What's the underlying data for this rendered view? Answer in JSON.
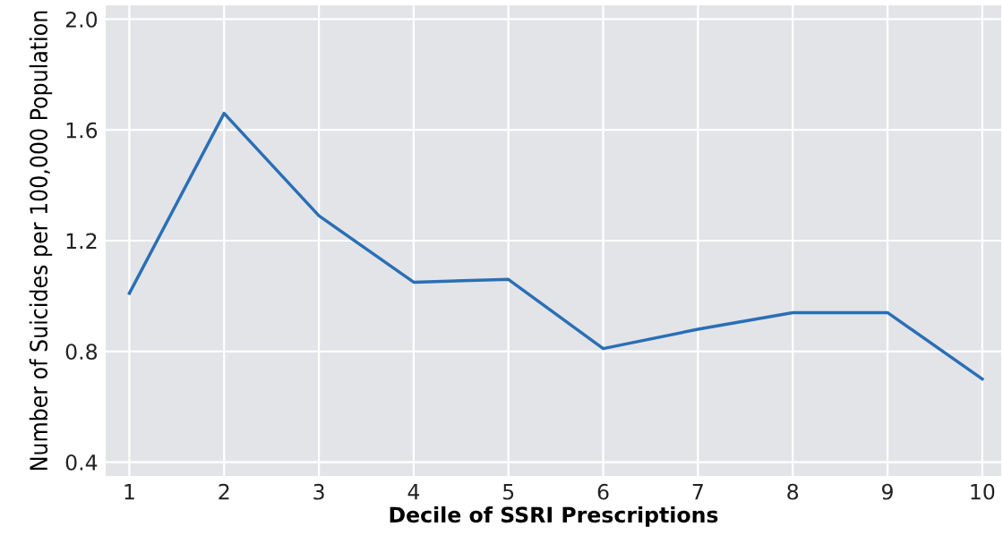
{
  "chart_data": {
    "type": "line",
    "xlabel": "Decile of SSRI Prescriptions",
    "ylabel": "Number of Suicides per 100,000 Population",
    "x": [
      1,
      2,
      3,
      4,
      5,
      6,
      7,
      8,
      9,
      10
    ],
    "series": [
      {
        "color": "#2a6fb5",
        "values": [
          1.01,
          1.66,
          1.29,
          1.05,
          1.06,
          0.81,
          0.88,
          0.94,
          0.94,
          0.7
        ]
      }
    ],
    "xlim": [
      0.75,
      10.2
    ],
    "xticks": [
      1,
      2,
      3,
      4,
      5,
      6,
      7,
      8,
      9,
      10
    ],
    "ylim": [
      0.35,
      2.05
    ],
    "yticks": [
      {
        "value": 0.4,
        "label": "0.4"
      },
      {
        "value": 0.8,
        "label": "0.8"
      },
      {
        "value": 1.2,
        "label": "1.2"
      },
      {
        "value": 1.6,
        "label": "1.6"
      },
      {
        "value": 2.0,
        "label": "2.0"
      }
    ],
    "grid": true,
    "marker": "none",
    "line_style": "solid"
  }
}
